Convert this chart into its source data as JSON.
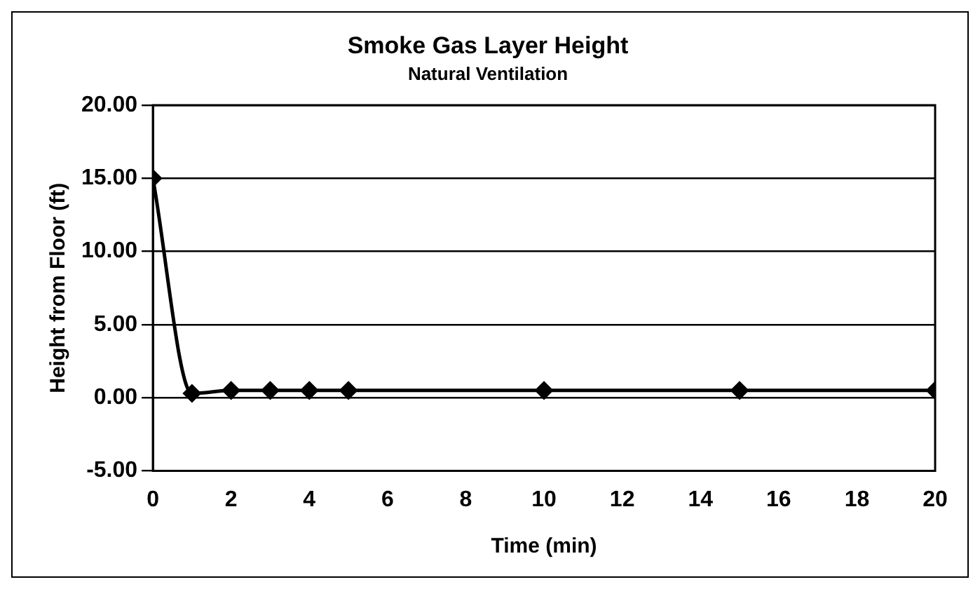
{
  "chart_data": {
    "type": "line",
    "title": "Smoke Gas Layer Height",
    "subtitle": "Natural Ventilation",
    "xlabel": "Time (min)",
    "ylabel": "Height from Floor (ft)",
    "x": [
      0,
      1,
      2,
      3,
      4,
      5,
      10,
      15,
      20
    ],
    "series": [
      {
        "color": "#000000",
        "values": [
          15,
          0.3,
          0.5,
          0.5,
          0.5,
          0.5,
          0.5,
          0.5,
          0.5
        ]
      }
    ],
    "xlim": [
      0,
      20
    ],
    "xticks": [
      0,
      2,
      4,
      6,
      8,
      10,
      12,
      14,
      16,
      18,
      20
    ],
    "ylim": [
      -5,
      20
    ],
    "yticks": [
      {
        "value": -5,
        "label": "-5.00"
      },
      {
        "value": 0,
        "label": "0.00"
      },
      {
        "value": 5,
        "label": "5.00"
      },
      {
        "value": 10,
        "label": "10.00"
      },
      {
        "value": 15,
        "label": "15.00"
      },
      {
        "value": 20,
        "label": "20.00"
      }
    ],
    "grid": "y",
    "marker": "diamond",
    "legend": false
  }
}
